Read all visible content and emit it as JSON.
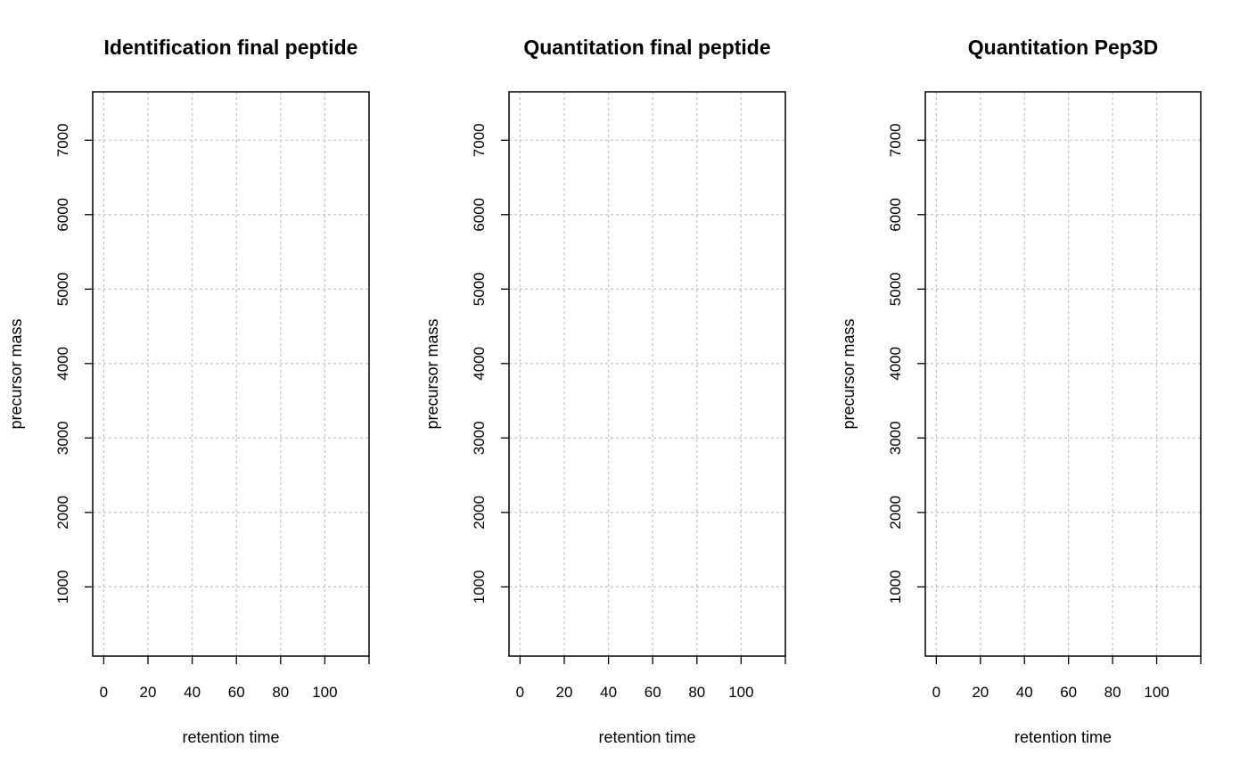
{
  "chart_data": [
    {
      "type": "scatter",
      "title": "Identification final peptide",
      "xlabel": "retention time",
      "ylabel": "precursor mass",
      "xticks": [
        0,
        20,
        40,
        60,
        80,
        100
      ],
      "yticks": [
        1000,
        2000,
        3000,
        4000,
        5000,
        6000,
        7000
      ],
      "xlim": [
        -5,
        120
      ],
      "ylim": [
        70,
        7650
      ],
      "grid": true,
      "vertical_line_x": 120,
      "series": [
        {
          "x": [],
          "y": []
        }
      ]
    },
    {
      "type": "scatter",
      "title": "Quantitation final peptide",
      "xlabel": "retention time",
      "ylabel": "precursor mass",
      "xticks": [
        0,
        20,
        40,
        60,
        80,
        100
      ],
      "yticks": [
        1000,
        2000,
        3000,
        4000,
        5000,
        6000,
        7000
      ],
      "xlim": [
        -5,
        120
      ],
      "ylim": [
        70,
        7650
      ],
      "grid": true,
      "vertical_line_x": 120,
      "series": [
        {
          "x": [],
          "y": []
        }
      ]
    },
    {
      "type": "scatter",
      "title": "Quantitation Pep3D",
      "xlabel": "retention time",
      "ylabel": "precursor mass",
      "xticks": [
        0,
        20,
        40,
        60,
        80,
        100
      ],
      "yticks": [
        1000,
        2000,
        3000,
        4000,
        5000,
        6000,
        7000
      ],
      "xlim": [
        -5,
        120
      ],
      "ylim": [
        70,
        7650
      ],
      "grid": true,
      "vertical_line_x": 120,
      "series": [
        {
          "x": [],
          "y": []
        }
      ]
    }
  ],
  "colors": {
    "grid": "#c8c8c8",
    "axis": "#000000",
    "background": "#ffffff"
  }
}
